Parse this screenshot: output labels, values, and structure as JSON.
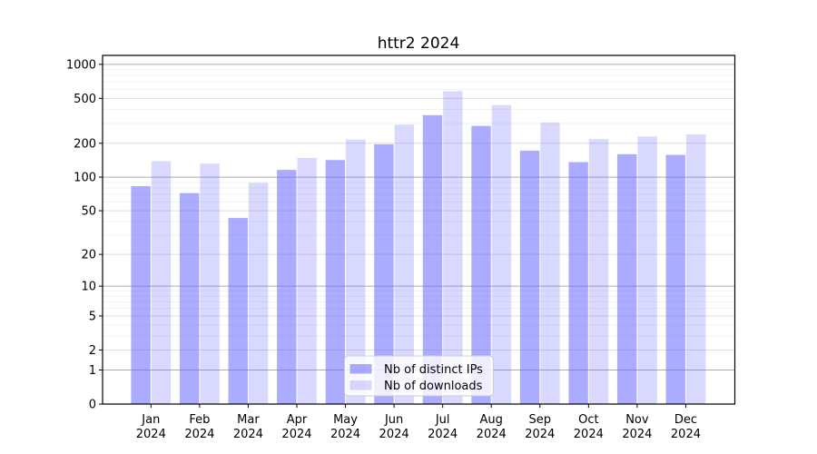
{
  "chart_data": {
    "type": "bar",
    "title": "httr2 2024",
    "categories": [
      "Jan",
      "Feb",
      "Mar",
      "Apr",
      "May",
      "Jun",
      "Jul",
      "Aug",
      "Sep",
      "Oct",
      "Nov",
      "Dec"
    ],
    "category_year": "2024",
    "series": [
      {
        "name": "Nb of distinct IPs",
        "color": "rgba(102,102,255,0.55)",
        "values": [
          83,
          72,
          43,
          116,
          142,
          196,
          355,
          285,
          172,
          136,
          160,
          158
        ]
      },
      {
        "name": "Nb of downloads",
        "color": "rgba(102,102,255,0.25)",
        "values": [
          139,
          132,
          89,
          148,
          216,
          293,
          580,
          437,
          305,
          218,
          230,
          240
        ]
      }
    ],
    "yscale": "log1p",
    "ylim": [
      0,
      1200
    ],
    "yticks": [
      0,
      1,
      2,
      5,
      10,
      20,
      50,
      100,
      200,
      500,
      1000
    ],
    "minor_yticks": [
      3,
      4,
      6,
      7,
      8,
      9,
      30,
      40,
      60,
      70,
      80,
      90,
      300,
      400,
      600,
      700,
      800,
      900
    ],
    "grid": true,
    "legend_position": "lower center",
    "xlabel": "",
    "ylabel": "",
    "colors": {
      "bar_dark": "rgba(102,102,255,0.55)",
      "bar_light": "rgba(102,102,255,0.25)",
      "grid_decade": "#ababab",
      "grid_mid": "#dddddd",
      "grid_minor": "#f1f1f1",
      "spine": "#000000",
      "legend_border": "#cccccc",
      "legend_bg": "rgba(255,255,255,0.8)"
    }
  }
}
